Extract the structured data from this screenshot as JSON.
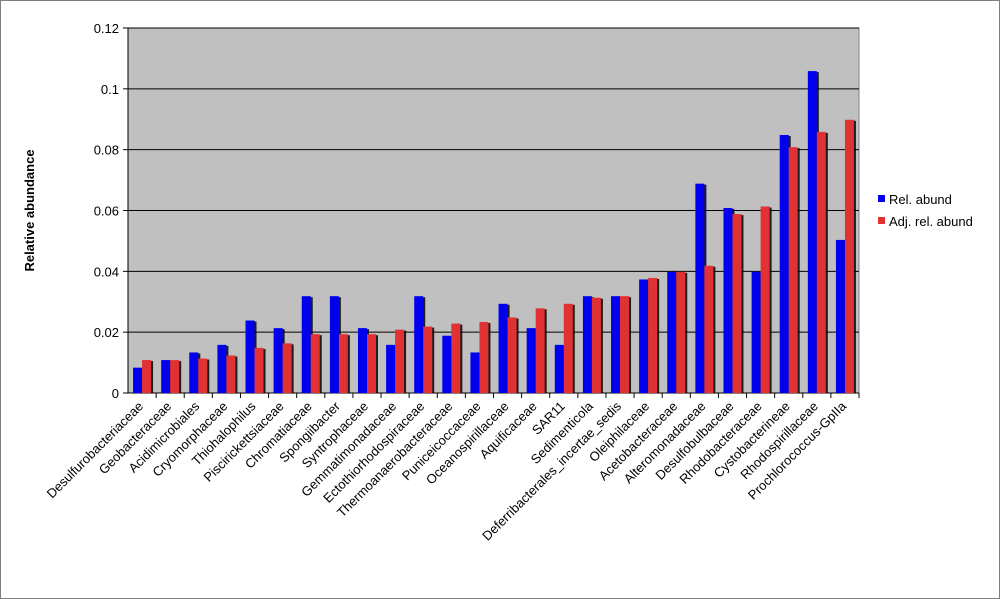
{
  "chart_data": {
    "type": "bar",
    "title": "",
    "xlabel": "",
    "ylabel": "Relative abundance",
    "ylim": [
      0,
      0.12
    ],
    "yticks": [
      0,
      0.02,
      0.04,
      0.06,
      0.08,
      0.1,
      0.12
    ],
    "ytick_labels": [
      "0",
      "0.02",
      "0.04",
      "0.06",
      "0.08",
      "0.1",
      "0.12"
    ],
    "grid": true,
    "legend_position": "right",
    "plot_background": "#c0c0c0",
    "categories": [
      "Desulfurobacteriaceae",
      "Geobacteraceae",
      "Acidimicrobiales",
      "Cryomorphaceae",
      "Thiohalophilus",
      "Piscirickettsiaceae",
      "Chromatiaceae",
      "Spongiibacter",
      "Syntrophaceae",
      "Gemmatimonadaceae",
      "Ectothiorhodospiraceae",
      "Thermoanaerobacteraceae",
      "Puniceicoccaceae",
      "Oceanospirillaceae",
      "Aquificaceae",
      "SAR11",
      "Sedimenticola",
      "Deferribacterales_incertae_sedis",
      "Oleiphilaceae",
      "Acetobacteraceae",
      "Alteromonadaceae",
      "Desulfobulbaceae",
      "Rhodobacteraceae",
      "Cystobacterineae",
      "Rhodospirillaceae",
      "Prochlorococcus-GpIIa"
    ],
    "series": [
      {
        "name": "Rel. abund",
        "color": "#0000ee",
        "values": [
          0.008,
          0.0105,
          0.013,
          0.0155,
          0.0235,
          0.021,
          0.0315,
          0.0315,
          0.021,
          0.0155,
          0.0315,
          0.0185,
          0.013,
          0.029,
          0.021,
          0.0155,
          0.0315,
          0.0315,
          0.037,
          0.0395,
          0.0685,
          0.0605,
          0.0395,
          0.0845,
          0.1055,
          0.05
        ]
      },
      {
        "name": "Adj. rel. abund",
        "color": "#e03232",
        "values": [
          0.0105,
          0.0105,
          0.011,
          0.012,
          0.0145,
          0.016,
          0.019,
          0.019,
          0.019,
          0.0205,
          0.0215,
          0.0225,
          0.023,
          0.0245,
          0.0275,
          0.029,
          0.031,
          0.0315,
          0.0375,
          0.0395,
          0.0415,
          0.0585,
          0.061,
          0.0805,
          0.0855,
          0.0895
        ]
      }
    ]
  }
}
